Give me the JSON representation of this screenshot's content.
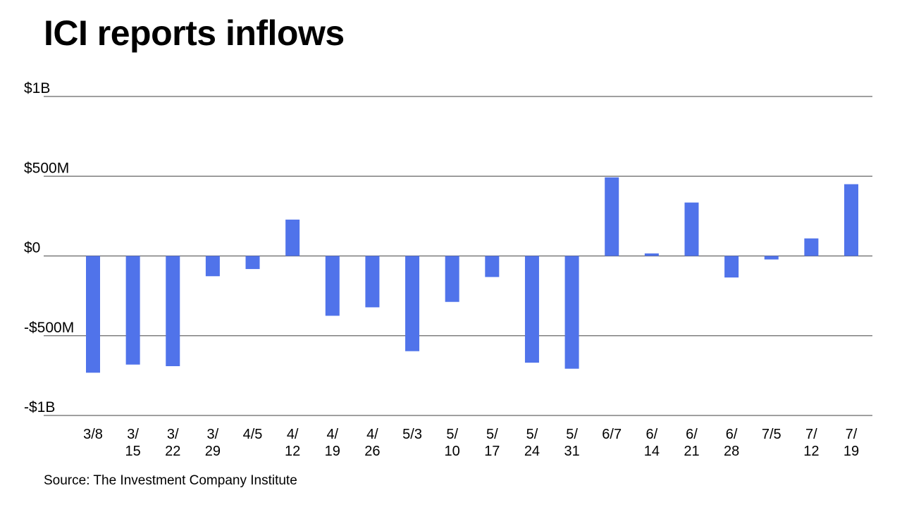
{
  "chart_data": {
    "type": "bar",
    "title": "ICI reports inflows",
    "source": "Source: The Investment Company Institute",
    "categories": [
      [
        "3/8"
      ],
      [
        "3/",
        "15"
      ],
      [
        "3/",
        "22"
      ],
      [
        "3/",
        "29"
      ],
      [
        "4/5"
      ],
      [
        "4/",
        "12"
      ],
      [
        "4/",
        "19"
      ],
      [
        "4/",
        "26"
      ],
      [
        "5/3"
      ],
      [
        "5/",
        "10"
      ],
      [
        "5/",
        "17"
      ],
      [
        "5/",
        "24"
      ],
      [
        "5/",
        "31"
      ],
      [
        "6/7"
      ],
      [
        "6/",
        "14"
      ],
      [
        "6/",
        "21"
      ],
      [
        "6/",
        "28"
      ],
      [
        "7/5"
      ],
      [
        "7/",
        "12"
      ],
      [
        "7/",
        "19"
      ]
    ],
    "values": [
      -732,
      -681,
      -691,
      -127,
      -82,
      228,
      -375,
      -322,
      -597,
      -288,
      -132,
      -669,
      -707,
      493,
      16,
      335,
      -135,
      -22,
      110,
      450
    ],
    "unit": "$M",
    "ylim": [
      -1000,
      1000
    ],
    "yticks": [
      {
        "value": 1000,
        "label": "$1B"
      },
      {
        "value": 500,
        "label": "$500M"
      },
      {
        "value": 0,
        "label": "$0"
      },
      {
        "value": -500,
        "label": "-$500M"
      },
      {
        "value": -1000,
        "label": "-$1B"
      }
    ],
    "grid": true,
    "bar_color": "#5073EA",
    "grid_color": "#666666"
  }
}
